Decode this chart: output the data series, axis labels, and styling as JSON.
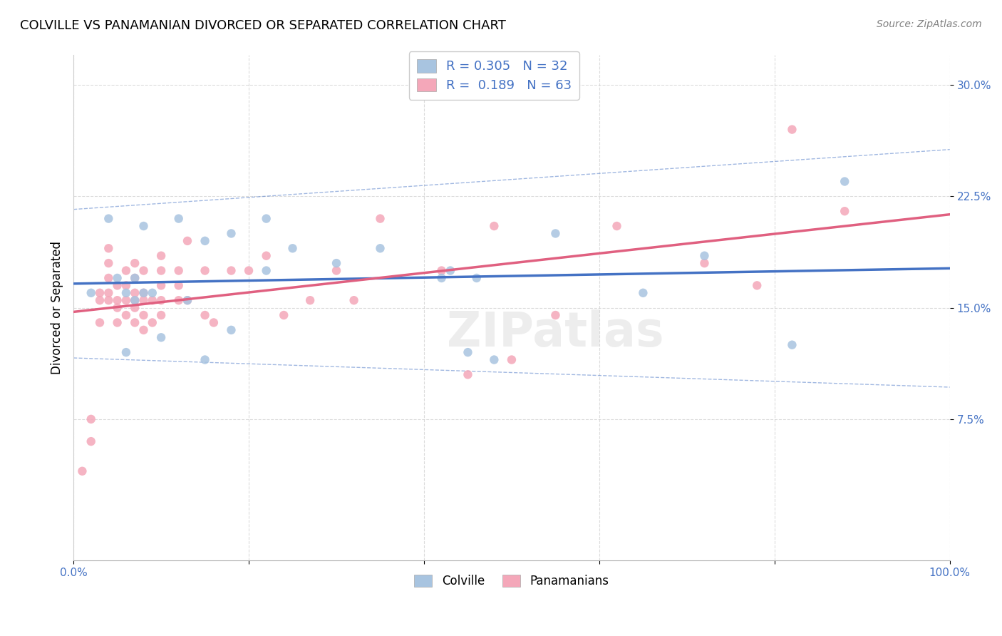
{
  "title": "COLVILLE VS PANAMANIAN DIVORCED OR SEPARATED CORRELATION CHART",
  "source": "Source: ZipAtlas.com",
  "xlabel": "",
  "ylabel": "Divorced or Separated",
  "legend_colville": "Colville",
  "legend_panamanian": "Panamanians",
  "R_colville": 0.305,
  "N_colville": 32,
  "R_panamanians": 0.189,
  "N_panamanians": 63,
  "xlim": [
    0.0,
    1.0
  ],
  "ylim": [
    -0.02,
    0.32
  ],
  "xticks": [
    0.0,
    0.2,
    0.4,
    0.6,
    0.8,
    1.0
  ],
  "xticklabels": [
    "0.0%",
    "",
    "",
    "",
    "",
    "100.0%"
  ],
  "yticks": [
    0.075,
    0.15,
    0.225,
    0.3
  ],
  "yticklabels": [
    "7.5%",
    "15.0%",
    "22.5%",
    "30.0%"
  ],
  "color_colville": "#a8c4e0",
  "color_panamanians": "#f4a7b9",
  "line_color_colville": "#4472c4",
  "line_color_panamanians": "#e06080",
  "scatter_alpha": 0.85,
  "scatter_size": 80,
  "watermark": "ZIPatlas",
  "colville_x": [
    0.02,
    0.04,
    0.05,
    0.06,
    0.06,
    0.07,
    0.07,
    0.08,
    0.08,
    0.09,
    0.1,
    0.12,
    0.13,
    0.15,
    0.15,
    0.18,
    0.18,
    0.22,
    0.22,
    0.25,
    0.3,
    0.35,
    0.42,
    0.43,
    0.45,
    0.46,
    0.48,
    0.55,
    0.65,
    0.72,
    0.82,
    0.88
  ],
  "colville_y": [
    0.16,
    0.21,
    0.17,
    0.16,
    0.12,
    0.17,
    0.155,
    0.205,
    0.16,
    0.16,
    0.13,
    0.21,
    0.155,
    0.115,
    0.195,
    0.2,
    0.135,
    0.175,
    0.21,
    0.19,
    0.18,
    0.19,
    0.17,
    0.175,
    0.12,
    0.17,
    0.115,
    0.2,
    0.16,
    0.185,
    0.125,
    0.235
  ],
  "panamanian_x": [
    0.01,
    0.02,
    0.02,
    0.03,
    0.03,
    0.03,
    0.04,
    0.04,
    0.04,
    0.04,
    0.04,
    0.05,
    0.05,
    0.05,
    0.05,
    0.06,
    0.06,
    0.06,
    0.06,
    0.07,
    0.07,
    0.07,
    0.07,
    0.07,
    0.07,
    0.08,
    0.08,
    0.08,
    0.08,
    0.08,
    0.09,
    0.09,
    0.1,
    0.1,
    0.1,
    0.1,
    0.1,
    0.12,
    0.12,
    0.12,
    0.13,
    0.13,
    0.15,
    0.15,
    0.16,
    0.18,
    0.2,
    0.22,
    0.24,
    0.27,
    0.3,
    0.32,
    0.35,
    0.42,
    0.45,
    0.48,
    0.5,
    0.55,
    0.62,
    0.72,
    0.78,
    0.82,
    0.88
  ],
  "panamanian_y": [
    0.04,
    0.075,
    0.06,
    0.14,
    0.155,
    0.16,
    0.155,
    0.16,
    0.17,
    0.18,
    0.19,
    0.14,
    0.15,
    0.155,
    0.165,
    0.145,
    0.155,
    0.165,
    0.175,
    0.14,
    0.15,
    0.155,
    0.16,
    0.17,
    0.18,
    0.135,
    0.145,
    0.155,
    0.16,
    0.175,
    0.14,
    0.155,
    0.145,
    0.155,
    0.165,
    0.175,
    0.185,
    0.155,
    0.165,
    0.175,
    0.155,
    0.195,
    0.145,
    0.175,
    0.14,
    0.175,
    0.175,
    0.185,
    0.145,
    0.155,
    0.175,
    0.155,
    0.21,
    0.175,
    0.105,
    0.205,
    0.115,
    0.145,
    0.205,
    0.18,
    0.165,
    0.27,
    0.215
  ]
}
